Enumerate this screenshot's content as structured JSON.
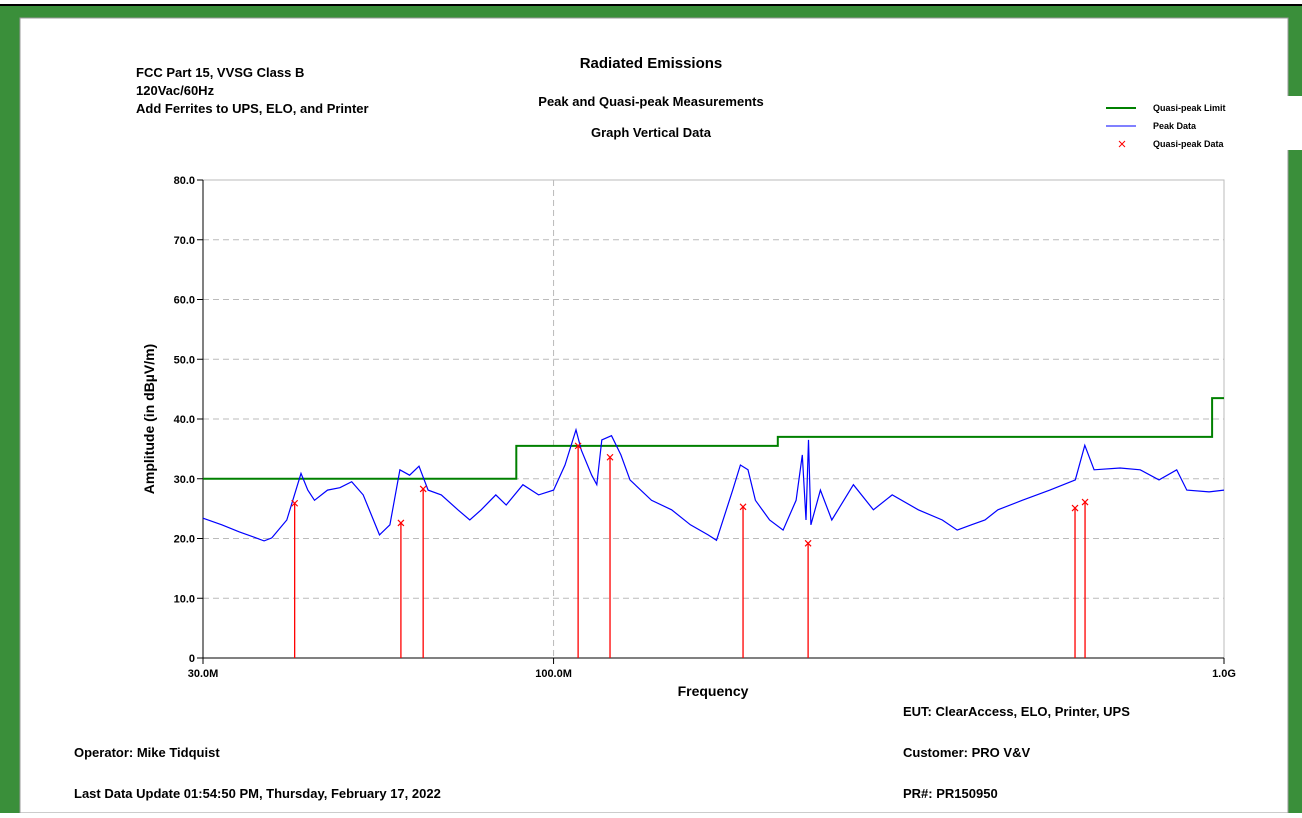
{
  "header_notes": [
    "FCC Part 15, VVSG Class B",
    "120Vac/60Hz",
    "Add Ferrites to UPS, ELO, and Printer"
  ],
  "footer": {
    "eut": "EUT: ClearAccess, ELO, Printer, UPS",
    "operator": "Operator: Mike Tidquist",
    "customer": "Customer: PRO V&V",
    "updated": "Last Data Update 01:54:50 PM, Thursday, February 17, 2022",
    "pr": "PR#: PR150950"
  },
  "chart_data": {
    "type": "line",
    "title": "Radiated Emissions",
    "subtitle": "Peak and Quasi-peak  Measurements",
    "subtitle2": "Graph  Vertical Data",
    "x_label": "Frequency",
    "y_label": "Amplitude (in dBµV/m)",
    "xscale": "log",
    "xlim": [
      30,
      1000
    ],
    "xticks": [
      {
        "value": 30,
        "label": "30.0M"
      },
      {
        "value": 100,
        "label": "100.0M"
      },
      {
        "value": 1000,
        "label": "1.0G"
      }
    ],
    "ylim": [
      0,
      80
    ],
    "yticks": [
      0,
      {
        "value": 10,
        "label": "10.0"
      },
      {
        "value": 20,
        "label": "20.0"
      },
      {
        "value": 30,
        "label": "30.0"
      },
      {
        "value": 40,
        "label": "40.0"
      },
      {
        "value": 50,
        "label": "50.0"
      },
      {
        "value": 60,
        "label": "60.0"
      },
      {
        "value": 70,
        "label": "70.0"
      },
      {
        "value": 80,
        "label": "80.0"
      }
    ],
    "grid": true,
    "legend": "top-right",
    "series": [
      {
        "name": "Quasi-peak Limit",
        "type": "line",
        "color": "#008000",
        "x": [
          30,
          88,
          88,
          216,
          216,
          960,
          960,
          1000
        ],
        "values": [
          30,
          30,
          35.5,
          35.5,
          37,
          37,
          43.5,
          43.5
        ]
      },
      {
        "name": "Peak Data",
        "type": "line",
        "color": "#0000ff",
        "x": [
          30,
          32,
          34,
          36,
          37,
          38,
          40,
          42,
          43,
          44,
          46,
          48,
          50,
          52,
          55,
          57,
          59,
          61,
          63,
          65,
          68,
          72,
          75,
          78,
          82,
          85,
          90,
          95,
          100,
          104,
          108,
          110,
          114,
          116,
          118,
          122,
          126,
          130,
          140,
          150,
          160,
          170,
          175,
          185,
          190,
          195,
          200,
          210,
          220,
          230,
          235,
          238,
          240,
          242,
          250,
          260,
          280,
          300,
          320,
          350,
          380,
          400,
          420,
          440,
          460,
          500,
          550,
          600,
          620,
          640,
          700,
          750,
          800,
          850,
          880,
          950,
          1000
        ],
        "values": [
          23.4,
          22.3,
          21.1,
          20.1,
          19.6,
          20.1,
          23.1,
          30.9,
          28.1,
          26.4,
          28.1,
          28.5,
          29.5,
          27.3,
          20.6,
          22.3,
          31.5,
          30.6,
          32.1,
          28.1,
          27.3,
          24.8,
          23.1,
          24.8,
          27.3,
          25.6,
          29.0,
          27.3,
          28.1,
          32.3,
          38.2,
          34.8,
          30.6,
          29.0,
          36.5,
          37.2,
          34.0,
          29.8,
          26.4,
          24.8,
          22.3,
          20.6,
          19.7,
          28.1,
          32.3,
          31.5,
          26.4,
          23.1,
          21.4,
          26.4,
          34.0,
          23.1,
          36.5,
          22.3,
          28.1,
          23.1,
          29.0,
          24.8,
          27.3,
          24.8,
          23.1,
          21.4,
          22.3,
          23.1,
          24.8,
          26.4,
          28.1,
          29.8,
          35.6,
          31.5,
          31.8,
          31.5,
          29.8,
          31.5,
          28.1,
          27.8,
          28.1
        ]
      },
      {
        "name": "Quasi-peak Data",
        "type": "stem",
        "color": "#ff0000",
        "x": [
          41.1,
          59.2,
          63.9,
          108.8,
          121.4,
          191.7,
          239.7,
          599.5,
          620.5
        ],
        "values": [
          25.9,
          22.6,
          28.3,
          35.5,
          33.6,
          25.3,
          19.2,
          25.1,
          26.1
        ]
      }
    ]
  }
}
